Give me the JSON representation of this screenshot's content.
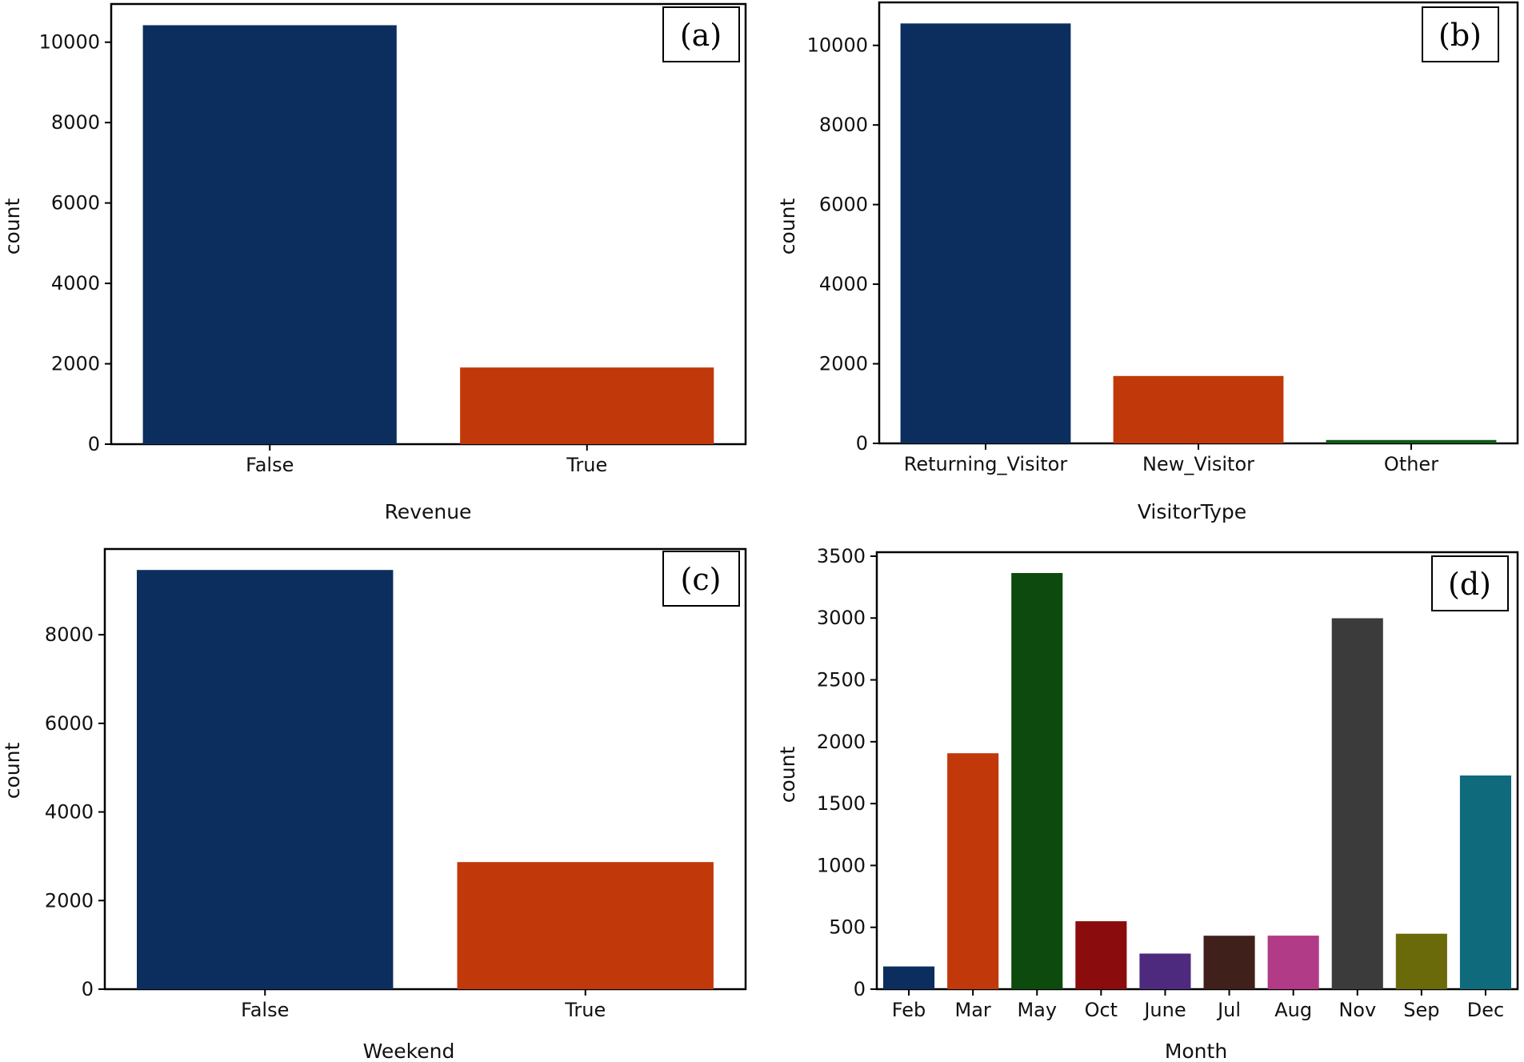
{
  "chart_data": [
    {
      "type": "bar",
      "panel_label": "(a)",
      "categories": [
        "False",
        "True"
      ],
      "values": [
        10422,
        1908
      ],
      "colors": [
        "#0b2e5e",
        "#c1380a"
      ],
      "xlabel": "Revenue",
      "ylabel": "count",
      "ylim": [
        0,
        10950
      ],
      "yticks": [
        0,
        2000,
        4000,
        6000,
        8000,
        10000
      ],
      "ytick_labels": [
        "0",
        "2000",
        "4000",
        "6000",
        "8000",
        "10000"
      ]
    },
    {
      "type": "bar",
      "panel_label": "(b)",
      "categories": [
        "Returning_Visitor",
        "New_Visitor",
        "Other"
      ],
      "values": [
        10551,
        1694,
        85
      ],
      "colors": [
        "#0b2e5e",
        "#c1380a",
        "#0d5a16"
      ],
      "xlabel": "VisitorType",
      "ylabel": "count",
      "ylim": [
        0,
        11080
      ],
      "yticks": [
        0,
        2000,
        4000,
        6000,
        8000,
        10000
      ],
      "ytick_labels": [
        "0",
        "2000",
        "4000",
        "6000",
        "8000",
        "10000"
      ]
    },
    {
      "type": "bar",
      "panel_label": "(c)",
      "categories": [
        "False",
        "True"
      ],
      "values": [
        9462,
        2868
      ],
      "colors": [
        "#0b2e5e",
        "#c1380a"
      ],
      "xlabel": "Weekend",
      "ylabel": "count",
      "ylim": [
        0,
        9935
      ],
      "yticks": [
        0,
        2000,
        4000,
        6000,
        8000
      ],
      "ytick_labels": [
        "0",
        "2000",
        "4000",
        "6000",
        "8000"
      ]
    },
    {
      "type": "bar",
      "panel_label": "(d)",
      "categories": [
        "Feb",
        "Mar",
        "May",
        "Oct",
        "June",
        "Jul",
        "Aug",
        "Nov",
        "Sep",
        "Dec"
      ],
      "values": [
        184,
        1907,
        3364,
        549,
        288,
        432,
        433,
        2998,
        448,
        1727
      ],
      "colors": [
        "#0b2e5e",
        "#c1380a",
        "#0d4a0d",
        "#8a0c0c",
        "#4e2a7e",
        "#40201a",
        "#b13b86",
        "#3b3b3b",
        "#6a6a0a",
        "#0f6a7c"
      ],
      "xlabel": "Month",
      "ylabel": "count",
      "ylim": [
        0,
        3532
      ],
      "yticks": [
        0,
        500,
        1000,
        1500,
        2000,
        2500,
        3000,
        3500
      ],
      "ytick_labels": [
        "0",
        "500",
        "1000",
        "1500",
        "2000",
        "2500",
        "3000",
        "3500"
      ]
    }
  ]
}
